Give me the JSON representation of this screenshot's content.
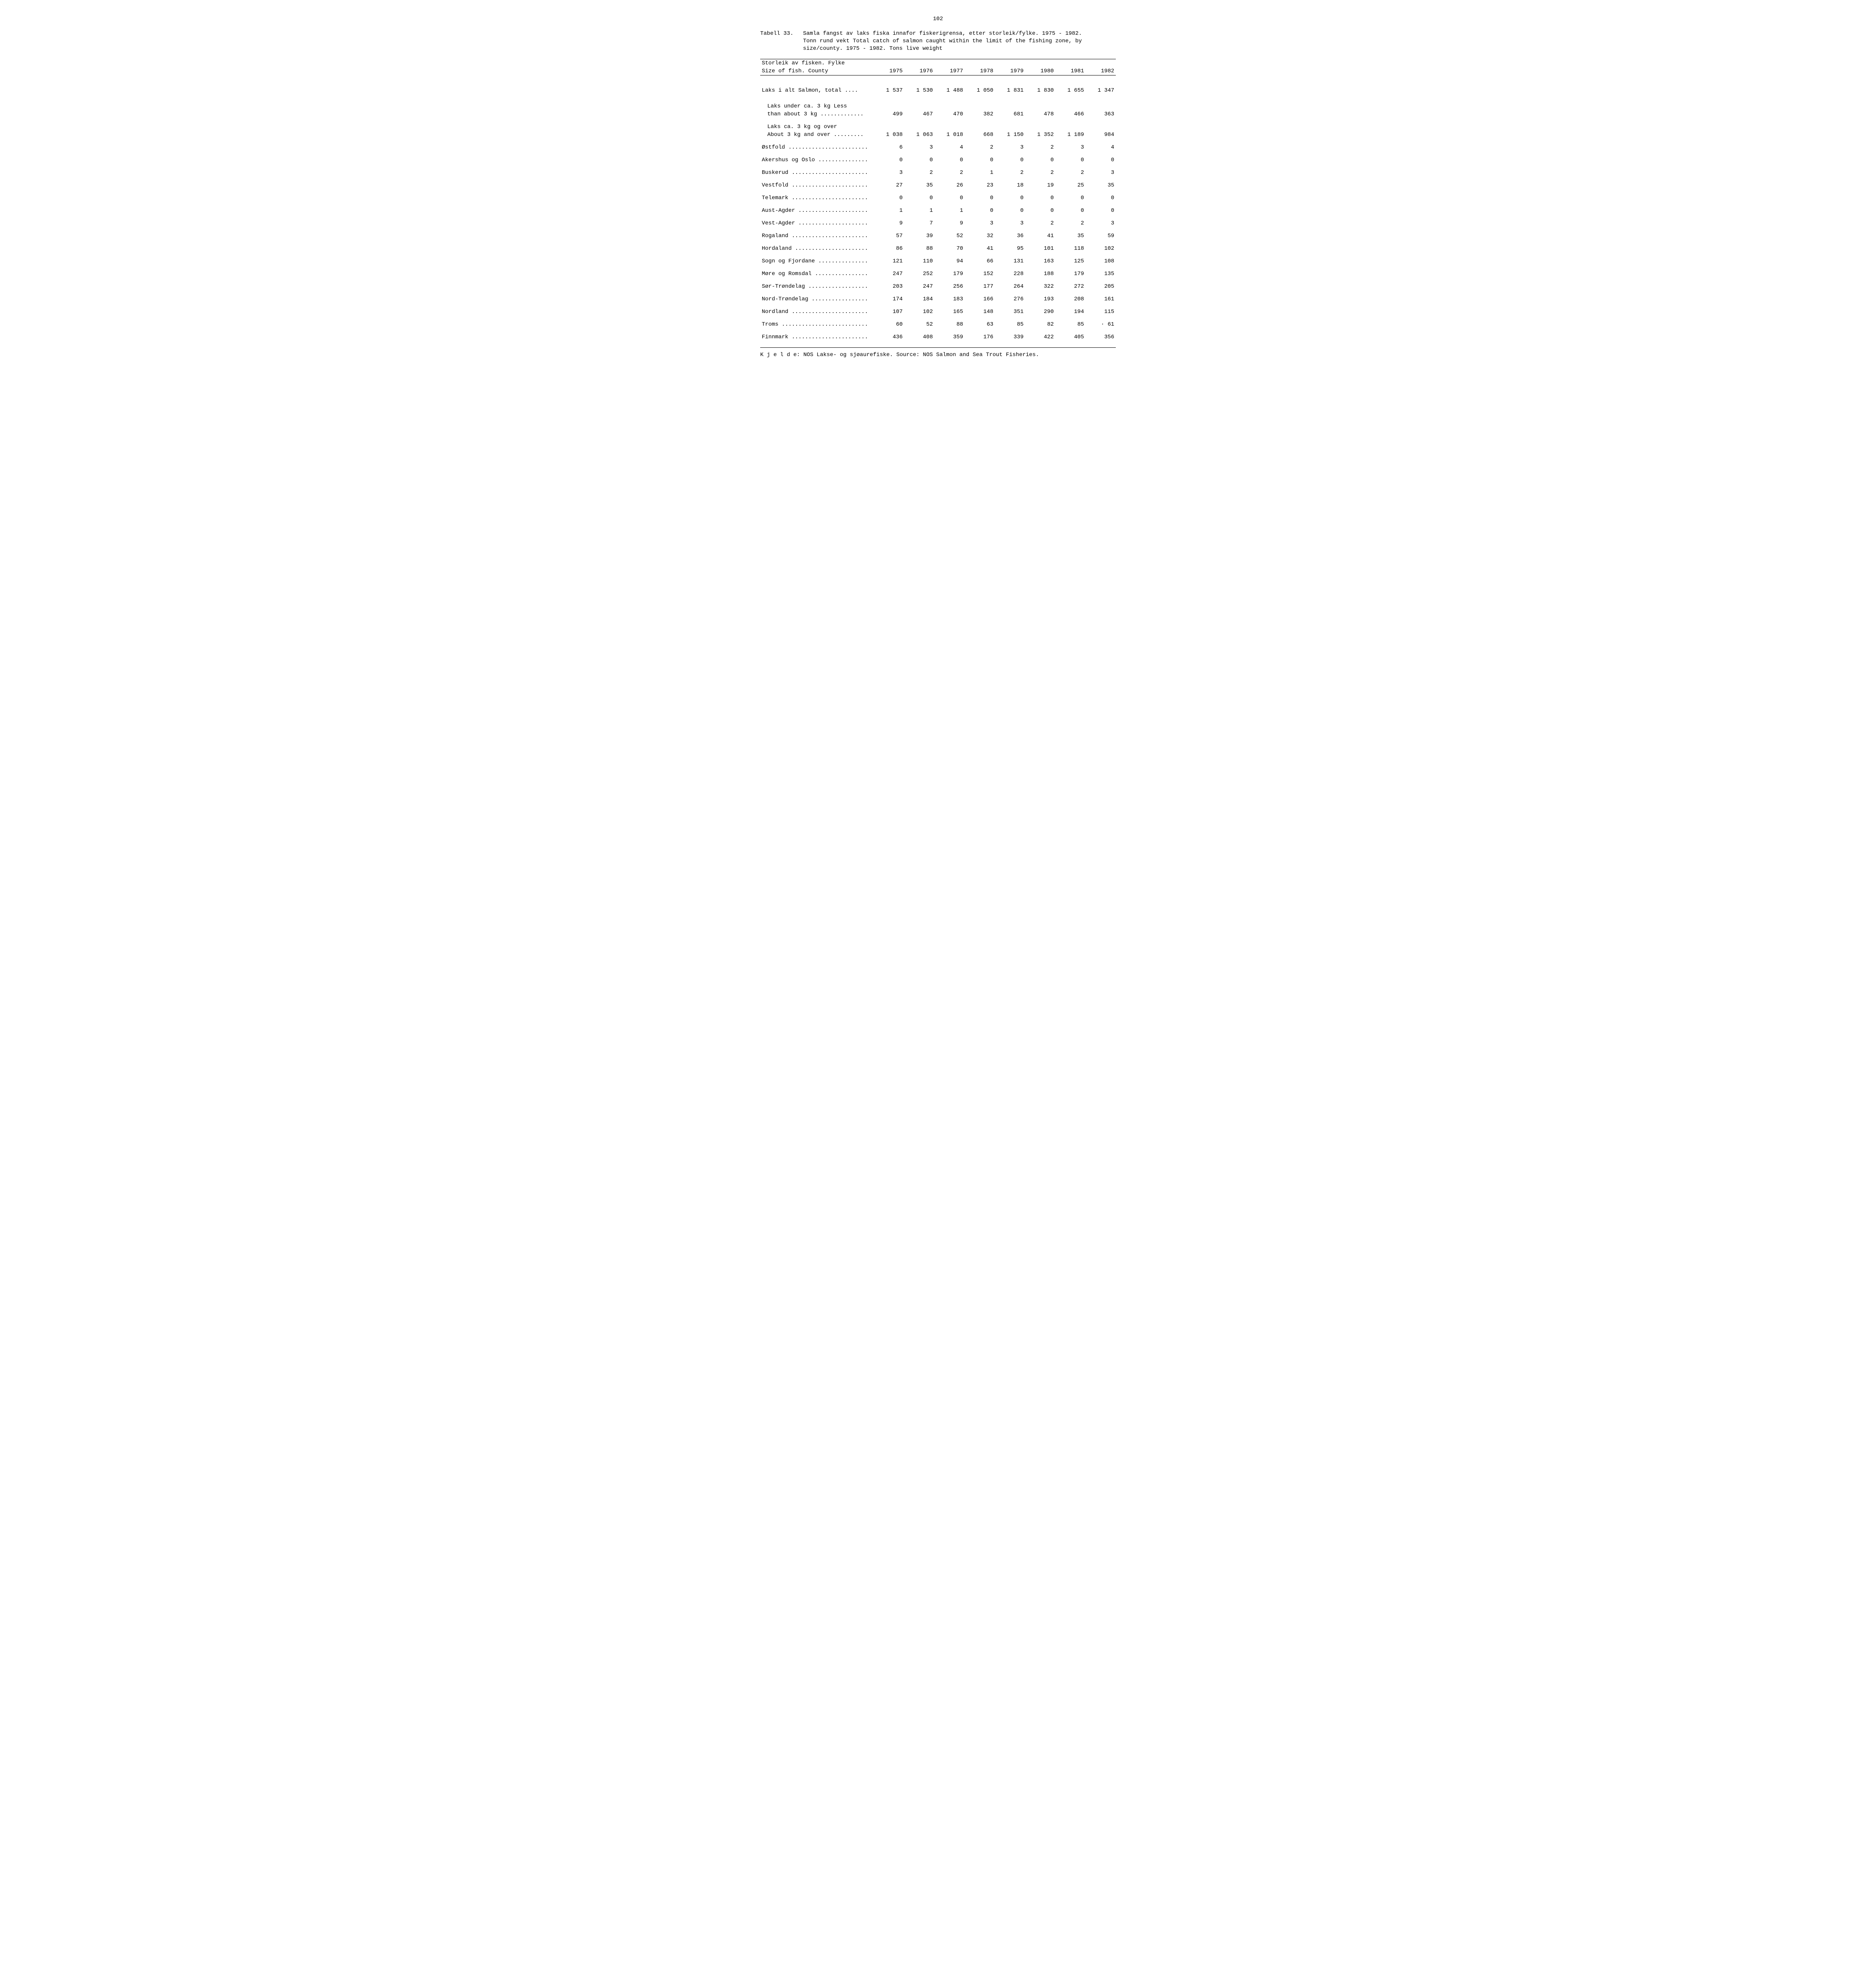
{
  "page_number": "102",
  "table_label": "Tabell 33.",
  "caption_line1": "Samla fangst av laks fiska innafor fiskerigrensa, etter storleik/fylke.  1975 - 1982.",
  "caption_line2": "Tonn rund vekt   Total catch of salmon caught within the limit of the fishing zone, by",
  "caption_line3": "size/county.  1975 - 1982.  Tons live weight",
  "header_line1": "Storleik av fisken. Fylke",
  "header_line2": "Size of fish. County",
  "years": [
    "1975",
    "1976",
    "1977",
    "1978",
    "1979",
    "1980",
    "1981",
    "1982"
  ],
  "rows": [
    {
      "type": "headrule"
    },
    {
      "type": "head"
    },
    {
      "type": "spacer24"
    },
    {
      "type": "data",
      "name": "total",
      "label": "Laks i alt   Salmon, total ....",
      "vals": [
        "1 537",
        "1 530",
        "1 488",
        "1 050",
        "1 831",
        "1 830",
        "1 655",
        "1 347"
      ]
    },
    {
      "type": "spacer16"
    },
    {
      "type": "labelonly",
      "name": "under3-l1",
      "indent": true,
      "label": "Laks under ca. 3 kg  Less"
    },
    {
      "type": "data",
      "name": "under3",
      "indent": true,
      "label": "than about 3 kg .............",
      "vals": [
        "499",
        "467",
        "470",
        "382",
        "681",
        "478",
        "466",
        "363"
      ]
    },
    {
      "type": "spacer8"
    },
    {
      "type": "labelonly",
      "name": "over3-l1",
      "indent": true,
      "label": "Laks ca. 3 kg og over"
    },
    {
      "type": "data",
      "name": "over3",
      "indent": true,
      "label": "About 3 kg and over .........",
      "vals": [
        "1 038",
        "1 063",
        "1 018",
        "668",
        "1 150",
        "1 352",
        "1 189",
        "984"
      ]
    },
    {
      "type": "spacer8"
    },
    {
      "type": "data",
      "name": "ostfold",
      "label": "Østfold ........................",
      "vals": [
        "6",
        "3",
        "4",
        "2",
        "3",
        "2",
        "3",
        "4"
      ]
    },
    {
      "type": "spacer8"
    },
    {
      "type": "data",
      "name": "akershus",
      "label": "Akershus og Oslo ...............",
      "vals": [
        "0",
        "0",
        "0",
        "0",
        "0",
        "0",
        "0",
        "0"
      ]
    },
    {
      "type": "spacer8"
    },
    {
      "type": "data",
      "name": "buskerud",
      "label": "Buskerud .......................",
      "vals": [
        "3",
        "2",
        "2",
        "1",
        "2",
        "2",
        "2",
        "3"
      ]
    },
    {
      "type": "spacer8"
    },
    {
      "type": "data",
      "name": "vestfold",
      "label": "Vestfold .......................",
      "vals": [
        "27",
        "35",
        "26",
        "23",
        "18",
        "19",
        "25",
        "35"
      ]
    },
    {
      "type": "spacer8"
    },
    {
      "type": "data",
      "name": "telemark",
      "label": "Telemark .......................",
      "vals": [
        "0",
        "0",
        "0",
        "0",
        "0",
        "0",
        "0",
        "0"
      ]
    },
    {
      "type": "spacer8"
    },
    {
      "type": "data",
      "name": "austagder",
      "label": "Aust-Agder .....................",
      "vals": [
        "1",
        "1",
        "1",
        "0",
        "0",
        "0",
        "0",
        "0"
      ]
    },
    {
      "type": "spacer8"
    },
    {
      "type": "data",
      "name": "vestagder",
      "label": "Vest-Agder .....................",
      "vals": [
        "9",
        "7",
        "9",
        "3",
        "3",
        "2",
        "2",
        "3"
      ]
    },
    {
      "type": "spacer8"
    },
    {
      "type": "data",
      "name": "rogaland",
      "label": "Rogaland .......................",
      "vals": [
        "57",
        "39",
        "52",
        "32",
        "36",
        "41",
        "35",
        "59"
      ]
    },
    {
      "type": "spacer8"
    },
    {
      "type": "data",
      "name": "hordaland",
      "label": "Hordaland ......................",
      "vals": [
        "86",
        "88",
        "70",
        "41",
        "95",
        "101",
        "118",
        "102"
      ]
    },
    {
      "type": "spacer8"
    },
    {
      "type": "data",
      "name": "sognfj",
      "label": "Sogn og Fjordane ...............",
      "vals": [
        "121",
        "110",
        "94",
        "66",
        "131",
        "163",
        "125",
        "108"
      ]
    },
    {
      "type": "spacer8"
    },
    {
      "type": "data",
      "name": "moreroms",
      "label": "Møre og Romsdal ................",
      "vals": [
        "247",
        "252",
        "179",
        "152",
        "228",
        "188",
        "179",
        "135"
      ]
    },
    {
      "type": "spacer8"
    },
    {
      "type": "data",
      "name": "sortrond",
      "label": "Sør-Trøndelag ..................",
      "vals": [
        "203",
        "247",
        "256",
        "177",
        "264",
        "322",
        "272",
        "205"
      ]
    },
    {
      "type": "spacer8"
    },
    {
      "type": "data",
      "name": "nordtrond",
      "label": "Nord-Trøndelag .................",
      "vals": [
        "174",
        "184",
        "183",
        "166",
        "276",
        "193",
        "208",
        "161"
      ]
    },
    {
      "type": "spacer8"
    },
    {
      "type": "data",
      "name": "nordland",
      "label": "Nordland .......................",
      "vals": [
        "107",
        "102",
        "165",
        "148",
        "351",
        "290",
        "194",
        "115"
      ]
    },
    {
      "type": "spacer8"
    },
    {
      "type": "data",
      "name": "troms",
      "label": "Troms ..........................",
      "vals": [
        "60",
        "52",
        "88",
        "63",
        "85",
        "82",
        "85",
        "· 61"
      ]
    },
    {
      "type": "spacer8"
    },
    {
      "type": "data",
      "name": "finnmark",
      "label": "Finnmark .......................",
      "vals": [
        "436",
        "408",
        "359",
        "176",
        "339",
        "422",
        "405",
        "356"
      ]
    },
    {
      "type": "spacer8"
    },
    {
      "type": "bottomrule"
    }
  ],
  "footer_label": "K j e l d e:",
  "footer_left": "  NOS Lakse- og sjøaurefiske.   ",
  "footer_src_label": "Source:",
  "footer_right": "  NOS Salmon and Sea Trout Fisheries.",
  "col_widths": {
    "label_pct": 32,
    "val_pct": 8.5
  }
}
